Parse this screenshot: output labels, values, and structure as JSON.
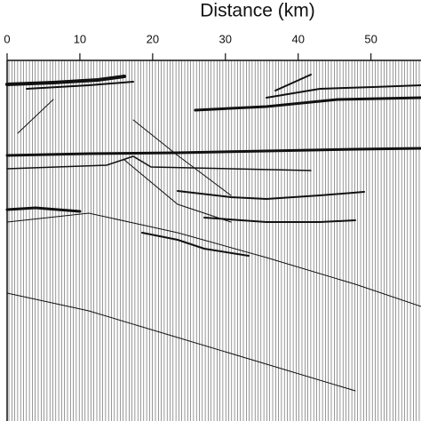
{
  "chart_data": {
    "type": "record-section",
    "xlabel": "Distance (km)",
    "xlim": [
      0,
      57
    ],
    "xticks": [
      0,
      10,
      20,
      30,
      40,
      50
    ]
  }
}
